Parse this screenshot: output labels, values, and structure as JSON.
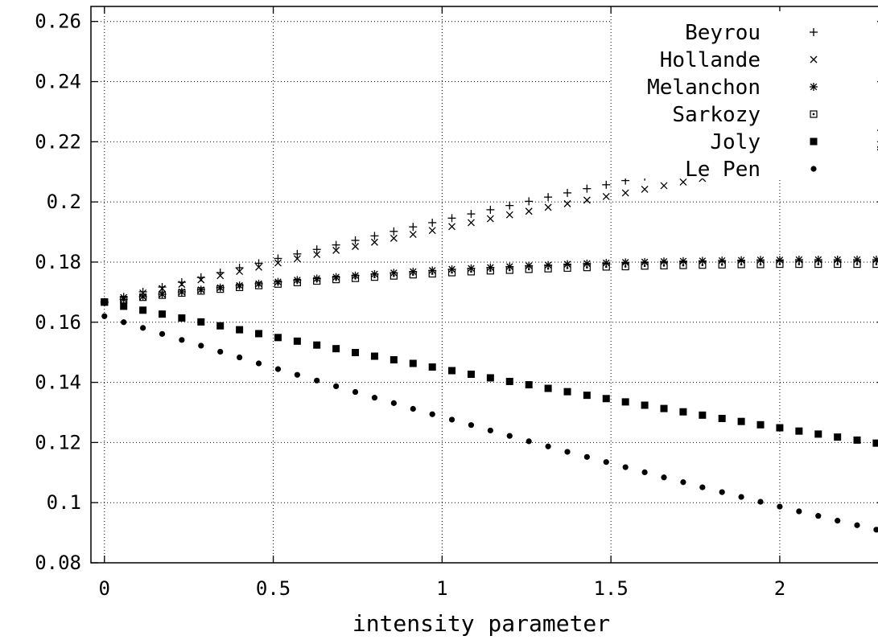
{
  "chart_data": {
    "type": "scatter",
    "title": "",
    "xlabel": "intensity parameter",
    "ylabel": "",
    "xlim": [
      -0.04,
      2.31
    ],
    "ylim": [
      0.08,
      0.265
    ],
    "grid": true,
    "legend_position": "top-right",
    "xticks": [
      0,
      0.5,
      1,
      1.5,
      2
    ],
    "xtick_labels": [
      "0",
      "0.5",
      "1",
      "1.5",
      "2"
    ],
    "yticks": [
      0.08,
      0.1,
      0.12,
      0.14,
      0.16,
      0.18,
      0.2,
      0.22,
      0.24,
      0.26
    ],
    "ytick_labels": [
      "0.08",
      "0.1",
      "0.12",
      "0.14",
      "0.16",
      "0.18",
      "0.2",
      "0.22",
      "0.24",
      "0.26"
    ],
    "x": [
      0,
      0.057,
      0.114,
      0.171,
      0.229,
      0.286,
      0.343,
      0.4,
      0.457,
      0.514,
      0.571,
      0.629,
      0.686,
      0.743,
      0.8,
      0.857,
      0.914,
      0.971,
      1.029,
      1.086,
      1.143,
      1.2,
      1.257,
      1.314,
      1.371,
      1.429,
      1.486,
      1.543,
      1.6,
      1.657,
      1.714,
      1.771,
      1.829,
      1.886,
      1.943,
      2.0,
      2.057,
      2.114,
      2.171,
      2.229,
      2.286
    ],
    "series": [
      {
        "name": "Beyrou",
        "marker": "plus",
        "values": [
          0.1667,
          0.1684,
          0.1701,
          0.1717,
          0.1733,
          0.1749,
          0.1765,
          0.1781,
          0.1796,
          0.1812,
          0.1827,
          0.1842,
          0.1857,
          0.1872,
          0.1887,
          0.1902,
          0.1917,
          0.1931,
          0.1946,
          0.196,
          0.1974,
          0.1988,
          0.2002,
          0.2016,
          0.203,
          0.2044,
          0.2057,
          0.2071,
          0.2084,
          0.2098,
          0.2111,
          0.2124,
          0.2137,
          0.215,
          0.2163,
          0.2176,
          0.2189,
          0.2201,
          0.2214,
          0.2226,
          0.2238
        ]
      },
      {
        "name": "Hollande",
        "marker": "cross",
        "values": [
          0.1667,
          0.1682,
          0.1697,
          0.1712,
          0.1726,
          0.1741,
          0.1755,
          0.1769,
          0.1783,
          0.1797,
          0.1811,
          0.1825,
          0.1839,
          0.1852,
          0.1866,
          0.1879,
          0.1892,
          0.1905,
          0.1918,
          0.1931,
          0.1944,
          0.1957,
          0.1969,
          0.1982,
          0.1994,
          0.2006,
          0.2018,
          0.203,
          0.2042,
          0.2054,
          0.2066,
          0.2078,
          0.2089,
          0.2101,
          0.2112,
          0.2123,
          0.2134,
          0.2145,
          0.2156,
          0.2167,
          0.2178
        ]
      },
      {
        "name": "Melanchon",
        "marker": "star",
        "values": [
          0.1667,
          0.1676,
          0.1685,
          0.1693,
          0.1701,
          0.1708,
          0.1715,
          0.1722,
          0.1728,
          0.1734,
          0.174,
          0.1745,
          0.175,
          0.1755,
          0.176,
          0.1764,
          0.1768,
          0.1772,
          0.1776,
          0.1779,
          0.1782,
          0.1785,
          0.1788,
          0.179,
          0.1793,
          0.1795,
          0.1797,
          0.1799,
          0.18,
          0.1802,
          0.1803,
          0.1804,
          0.1805,
          0.1806,
          0.1807,
          0.1807,
          0.1808,
          0.1808,
          0.1808,
          0.1808,
          0.1808
        ]
      },
      {
        "name": "Sarkozy",
        "marker": "open-square",
        "values": [
          0.1667,
          0.1675,
          0.1683,
          0.169,
          0.1697,
          0.1704,
          0.171,
          0.1716,
          0.1722,
          0.1727,
          0.1732,
          0.1737,
          0.1742,
          0.1746,
          0.175,
          0.1754,
          0.1758,
          0.1761,
          0.1765,
          0.1768,
          0.1771,
          0.1773,
          0.1776,
          0.1778,
          0.178,
          0.1782,
          0.1784,
          0.1785,
          0.1787,
          0.1788,
          0.1789,
          0.179,
          0.1791,
          0.1792,
          0.1792,
          0.1793,
          0.1793,
          0.1793,
          0.1793,
          0.1793,
          0.1793
        ]
      },
      {
        "name": "Joly",
        "marker": "filled-square",
        "values": [
          0.1667,
          0.1653,
          0.164,
          0.1627,
          0.1614,
          0.1601,
          0.1588,
          0.1575,
          0.1562,
          0.1549,
          0.1537,
          0.1524,
          0.1512,
          0.1499,
          0.1487,
          0.1475,
          0.1463,
          0.1451,
          0.1439,
          0.1427,
          0.1415,
          0.1403,
          0.1392,
          0.138,
          0.1369,
          0.1357,
          0.1346,
          0.1335,
          0.1324,
          0.1313,
          0.1302,
          0.1291,
          0.128,
          0.127,
          0.1259,
          0.1249,
          0.1238,
          0.1228,
          0.1218,
          0.1208,
          0.1198
        ]
      },
      {
        "name": "Le Pen",
        "marker": "dot",
        "values": [
          0.162,
          0.16,
          0.1581,
          0.1561,
          0.1541,
          0.1522,
          0.1502,
          0.1483,
          0.1463,
          0.1444,
          0.1425,
          0.1406,
          0.1387,
          0.1368,
          0.1349,
          0.1331,
          0.1312,
          0.1294,
          0.1276,
          0.1258,
          0.124,
          0.1222,
          0.1204,
          0.1187,
          0.1169,
          0.1152,
          0.1135,
          0.1118,
          0.1101,
          0.1084,
          0.1068,
          0.1051,
          0.1035,
          0.1019,
          0.1003,
          0.0987,
          0.0971,
          0.0956,
          0.094,
          0.0925,
          0.091
        ]
      }
    ]
  }
}
